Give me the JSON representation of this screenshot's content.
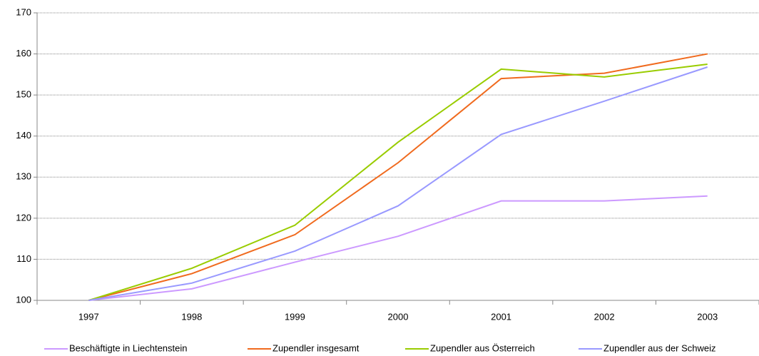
{
  "chart_data": {
    "type": "line",
    "categories": [
      "1997",
      "1998",
      "1999",
      "2000",
      "2001",
      "2002",
      "2003"
    ],
    "series": [
      {
        "name": "Beschäftigte in Liechtenstein",
        "color": "#cc99ff",
        "values": [
          100,
          102.8,
          109.3,
          115.6,
          124.2,
          124.2,
          125.4
        ]
      },
      {
        "name": "Zupendler insgesamt",
        "color": "#f06a1e",
        "values": [
          100,
          106.5,
          116,
          133.5,
          154,
          155.3,
          160
        ]
      },
      {
        "name": "Zupendler aus Österreich",
        "color": "#99cc00",
        "values": [
          100,
          107.8,
          118.3,
          138.5,
          156.3,
          154.4,
          157.5
        ]
      },
      {
        "name": "Zupendler aus der Schweiz",
        "color": "#9999ff",
        "values": [
          100,
          104.2,
          112,
          123,
          140.4,
          148.5,
          156.8
        ]
      }
    ],
    "ylim": [
      100,
      170
    ],
    "yticks": [
      100,
      110,
      120,
      130,
      140,
      150,
      160,
      170
    ],
    "grid": true,
    "legend": "bottom"
  }
}
